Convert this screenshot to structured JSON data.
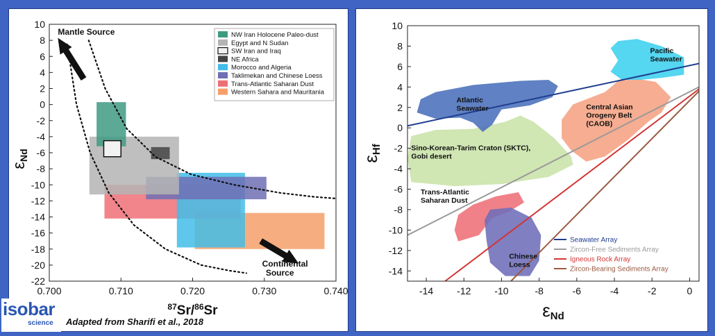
{
  "footer": {
    "logo_word": "isobar",
    "logo_sub": "science",
    "credit": "Adapted from Sharifi et al., 2018"
  },
  "chart_data": [
    {
      "type": "area",
      "xlabel_sup1": "87",
      "xlabel_mid": "Sr/",
      "xlabel_sup2": "86",
      "xlabel_end": "Sr",
      "ylabel_greek": "ε",
      "ylabel_sub": "Nd",
      "xlim": [
        0.7,
        0.74
      ],
      "ylim": [
        -22,
        10
      ],
      "x_ticks": [
        0.7,
        0.71,
        0.72,
        0.73,
        0.74
      ],
      "x_tick_labels": [
        "0.700",
        "0.710",
        "0.720",
        "0.730",
        "0.740"
      ],
      "y_ticks": [
        10,
        8,
        6,
        4,
        2,
        0,
        -2,
        -4,
        -6,
        -8,
        -10,
        -12,
        -14,
        -16,
        -18,
        -20,
        -22
      ],
      "y_tick_labels": [
        "10",
        "8",
        "6",
        "4",
        "2",
        "0",
        "-2",
        "-4",
        "-6",
        "-8",
        "-10",
        "-12",
        "-14",
        "-16",
        "-18",
        "-20",
        "-22"
      ],
      "annotations": [
        {
          "text": "Mantle Source",
          "x": 0.7012,
          "y": 8.7
        },
        {
          "text": "Continental",
          "x": 0.7297,
          "y": -20.2
        },
        {
          "text": "Source",
          "x": 0.7302,
          "y": -21.3
        }
      ],
      "arrows": [
        {
          "from": [
            0.7048,
            3.2
          ],
          "to": [
            0.7012,
            8.3
          ]
        },
        {
          "from": [
            0.7295,
            -17.0
          ],
          "to": [
            0.7348,
            -19.8
          ]
        }
      ],
      "curves": [
        {
          "x": [
            0.7025,
            0.7038,
            0.7057,
            0.7083,
            0.7118,
            0.7162,
            0.7212,
            0.7252,
            0.7275
          ],
          "y": [
            7.5,
            0.0,
            -6.0,
            -11.0,
            -15.0,
            -18.0,
            -20.0,
            -20.7,
            -21.0
          ]
        },
        {
          "x": [
            0.7055,
            0.7078,
            0.7108,
            0.7148,
            0.7198,
            0.7258,
            0.7322,
            0.737,
            0.74
          ],
          "y": [
            8.0,
            2.0,
            -3.0,
            -6.5,
            -8.7,
            -10.0,
            -11.0,
            -11.5,
            -11.7
          ]
        }
      ],
      "regions": [
        {
          "name": "Western Sahara and Mauritania",
          "color": "#f5a06a",
          "x0": 0.7203,
          "x1": 0.7384,
          "y0": -18.0,
          "y1": -13.5
        },
        {
          "name": "Trans-Atlantic Saharan Dust",
          "color": "#ee7077",
          "x0": 0.7077,
          "x1": 0.7267,
          "y0": -14.2,
          "y1": -10.0
        },
        {
          "name": "Morocco and Algeria",
          "color": "#42bde8",
          "x0": 0.7178,
          "x1": 0.7273,
          "y0": -17.8,
          "y1": -8.5
        },
        {
          "name": "Taklimekan and Chinese Loess",
          "color": "#6f6fb4",
          "x0": 0.7135,
          "x1": 0.7303,
          "y0": -11.8,
          "y1": -9.0
        },
        {
          "name": "Egypt and  N Sudan",
          "color": "#b4b4b4",
          "x0": 0.7056,
          "x1": 0.7181,
          "y0": -11.2,
          "y1": -4.0
        },
        {
          "name": "NW Iran Holocene Paleo-dust",
          "color": "#3f9a82",
          "x0": 0.7066,
          "x1": 0.7107,
          "y0": -5.2,
          "y1": 0.3
        },
        {
          "name": "NE Africa",
          "color": "#444444",
          "x0": 0.7142,
          "x1": 0.7168,
          "y0": -6.8,
          "y1": -5.3
        },
        {
          "name": "SW Iran and Iraq",
          "color": "#f2f2f2",
          "x0": 0.7076,
          "x1": 0.71,
          "y0": -6.5,
          "y1": -4.5
        }
      ],
      "legend": {
        "placement": "top-right",
        "entries": [
          {
            "label": "NW Iran Holocene Paleo-dust",
            "color": "#3f9a82"
          },
          {
            "label": "Egypt and  N Sudan",
            "color": "#b4b4b4"
          },
          {
            "label": "SW Iran and Iraq",
            "color": "#f2f2f2"
          },
          {
            "label": "NE Africa",
            "color": "#444444"
          },
          {
            "label": "Morocco and Algeria",
            "color": "#42bde8"
          },
          {
            "label": "Taklimekan and Chinese Loess",
            "color": "#6f6fb4"
          },
          {
            "label": "Trans-Atlantic Saharan Dust",
            "color": "#ee7077"
          },
          {
            "label": "Western Sahara and Mauritania",
            "color": "#f5a06a"
          }
        ]
      }
    },
    {
      "type": "area",
      "xlabel_greek": "ε",
      "xlabel_sub": "Nd",
      "ylabel_greek": "ε",
      "ylabel_sub": "Hf",
      "xlim": [
        -15,
        0.5
      ],
      "ylim": [
        -15,
        10
      ],
      "x_ticks": [
        -14,
        -12,
        -10,
        -8,
        -6,
        -4,
        -2,
        0
      ],
      "x_tick_labels": [
        "-14",
        "-12",
        "-10",
        "-8",
        "-6",
        "-4",
        "-2",
        "0"
      ],
      "y_ticks": [
        10,
        8,
        6,
        4,
        2,
        0,
        -2,
        -4,
        -6,
        -8,
        -10,
        -12,
        -14
      ],
      "y_tick_labels": [
        "10",
        "8",
        "6",
        "4",
        "2",
        "0",
        "-2",
        "-4",
        "-6",
        "-8",
        "-10",
        "-12",
        "-14"
      ],
      "regions": [
        {
          "name": "Sino-Korean-Tarim Craton (SKTC), Gobi desert",
          "label_lines": [
            "Sino-Korean-Tarim Craton (SKTC),",
            "Gobi desert"
          ],
          "color": "#c9e3a8",
          "label_at": [
            -14.8,
            -2.2
          ],
          "points": [
            [
              -14.8,
              -0.8
            ],
            [
              -13.5,
              -0.2
            ],
            [
              -11.5,
              -0.1
            ],
            [
              -9.8,
              0.6
            ],
            [
              -9.0,
              1.2
            ],
            [
              -8.3,
              0.6
            ],
            [
              -7.2,
              -1.0
            ],
            [
              -6.3,
              -2.8
            ],
            [
              -6.2,
              -3.6
            ],
            [
              -7.5,
              -4.8
            ],
            [
              -10.0,
              -5.5
            ],
            [
              -12.5,
              -5.7
            ],
            [
              -14.8,
              -5.3
            ],
            [
              -15.0,
              -3.0
            ]
          ]
        },
        {
          "name": "Atlantic Seawater",
          "label_lines": [
            "Atlantic",
            "Seawater"
          ],
          "color": "#4a6fbb",
          "label_at": [
            -12.4,
            2.5
          ],
          "points": [
            [
              -14.5,
              1.5
            ],
            [
              -14.3,
              2.8
            ],
            [
              -13.5,
              3.5
            ],
            [
              -11.5,
              4.2
            ],
            [
              -9.0,
              4.6
            ],
            [
              -7.5,
              4.7
            ],
            [
              -7.0,
              4.1
            ],
            [
              -7.3,
              3.0
            ],
            [
              -8.5,
              2.2
            ],
            [
              -10.0,
              1.8
            ],
            [
              -10.5,
              0.3
            ],
            [
              -11.0,
              -0.4
            ],
            [
              -11.5,
              0.5
            ],
            [
              -12.2,
              1.0
            ],
            [
              -13.5,
              0.9
            ]
          ]
        },
        {
          "name": "Central Asian Orogeny Belt (CAOB)",
          "label_lines": [
            "Central Asian",
            "Orogeny Belt",
            "(CAOB)"
          ],
          "color": "#f5a282",
          "label_at": [
            -5.5,
            1.8
          ],
          "points": [
            [
              -6.8,
              0.8
            ],
            [
              -6.2,
              2.3
            ],
            [
              -4.5,
              3.5
            ],
            [
              -3.8,
              4.6
            ],
            [
              -2.8,
              4.8
            ],
            [
              -1.8,
              4.5
            ],
            [
              -1.0,
              3.0
            ],
            [
              -1.5,
              1.5
            ],
            [
              -2.2,
              0.6
            ],
            [
              -3.3,
              -1.2
            ],
            [
              -4.5,
              -2.8
            ],
            [
              -5.5,
              -3.3
            ],
            [
              -6.3,
              -2.2
            ],
            [
              -6.8,
              -1.0
            ]
          ]
        },
        {
          "name": "Pacific Seawater",
          "label_lines": [
            "Pacific",
            "Seawater"
          ],
          "color": "#3ed0ef",
          "label_at": [
            -2.1,
            7.3
          ],
          "points": [
            [
              -3.8,
              8.5
            ],
            [
              -2.8,
              8.7
            ],
            [
              -1.5,
              8.0
            ],
            [
              -0.3,
              6.9
            ],
            [
              -0.3,
              5.2
            ],
            [
              -1.5,
              4.9
            ],
            [
              -2.6,
              4.7
            ],
            [
              -3.6,
              4.7
            ],
            [
              -4.2,
              5.5
            ],
            [
              -3.8,
              6.6
            ],
            [
              -4.2,
              7.8
            ]
          ]
        },
        {
          "name": "Trans-Atlantic Saharan Dust",
          "label_lines": [
            "Trans-Atlantic",
            "Saharan Dust"
          ],
          "color": "#ee7077",
          "label_at": [
            -14.3,
            -6.5
          ],
          "points": [
            [
              -12.5,
              -10.0
            ],
            [
              -12.3,
              -8.5
            ],
            [
              -11.5,
              -7.5
            ],
            [
              -10.3,
              -6.7
            ],
            [
              -9.1,
              -6.3
            ],
            [
              -8.8,
              -7.3
            ],
            [
              -9.6,
              -8.2
            ],
            [
              -10.5,
              -8.8
            ],
            [
              -11.2,
              -10.5
            ],
            [
              -12.3,
              -11.1
            ]
          ]
        },
        {
          "name": "Chinese Loess",
          "label_lines": [
            "Chinese",
            "Loess"
          ],
          "color": "#6d6db8",
          "label_at": [
            -9.6,
            -12.8
          ],
          "points": [
            [
              -10.9,
              -9.0
            ],
            [
              -10.6,
              -8.0
            ],
            [
              -9.5,
              -7.8
            ],
            [
              -8.4,
              -8.8
            ],
            [
              -7.9,
              -10.5
            ],
            [
              -8.0,
              -13.0
            ],
            [
              -8.5,
              -14.5
            ],
            [
              -9.8,
              -14.5
            ],
            [
              -10.6,
              -13.2
            ],
            [
              -10.8,
              -11.0
            ]
          ]
        }
      ],
      "lines": [
        {
          "name": "Seawater Array",
          "color": "#1f3d8f",
          "x": [
            -15,
            0.5
          ],
          "y": [
            0.2,
            6.3
          ]
        },
        {
          "name": "Zircon-Free Sediments Array",
          "color": "#9a9a9a",
          "x": [
            -15,
            0.5
          ],
          "y": [
            -10.5,
            4.0
          ]
        },
        {
          "name": "Igneous Rock Array",
          "color": "#d23535",
          "x": [
            -13.0,
            0.5
          ],
          "y": [
            -15.0,
            3.8
          ]
        },
        {
          "name": "Zircon-Bearing Sediments Array",
          "color": "#9a5a42",
          "x": [
            -9.5,
            0.5
          ],
          "y": [
            -15.0,
            3.6
          ]
        }
      ],
      "legend": {
        "placement": "bottom-right",
        "entries": [
          {
            "label": "Seawater Array",
            "color": "#1f3d8f"
          },
          {
            "label": "Zircon-Free Sediments Array",
            "color": "#9a9a9a"
          },
          {
            "label": "Igneous Rock Array",
            "color": "#d23535"
          },
          {
            "label": "Zircon-Bearing Sediments Array",
            "color": "#9a5a42"
          }
        ]
      }
    }
  ]
}
